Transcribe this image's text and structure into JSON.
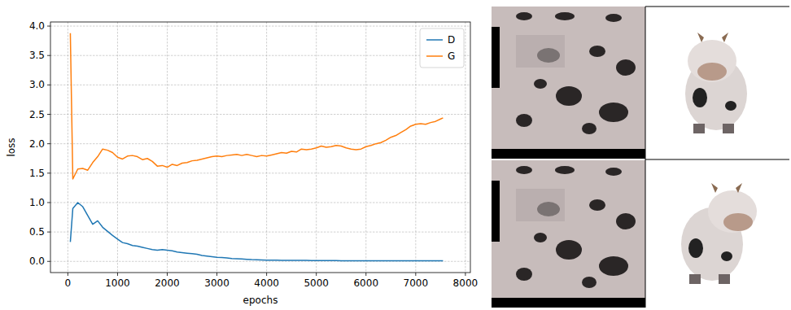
{
  "chart_data": {
    "type": "line",
    "xlabel": "epochs",
    "ylabel": "loss",
    "x": [
      50,
      100,
      200,
      300,
      400,
      500,
      600,
      700,
      800,
      900,
      1000,
      1100,
      1200,
      1300,
      1400,
      1500,
      1600,
      1700,
      1800,
      1900,
      2000,
      2100,
      2200,
      2300,
      2400,
      2500,
      2600,
      2700,
      2800,
      2900,
      3000,
      3100,
      3200,
      3300,
      3400,
      3500,
      3600,
      3700,
      3800,
      3900,
      4000,
      4100,
      4200,
      4300,
      4400,
      4500,
      4600,
      4700,
      4800,
      4900,
      5000,
      5100,
      5200,
      5300,
      5400,
      5500,
      5600,
      5700,
      5800,
      5900,
      6000,
      6100,
      6200,
      6300,
      6400,
      6500,
      6600,
      6700,
      6800,
      6900,
      7000,
      7100,
      7200,
      7300,
      7400,
      7500,
      7550
    ],
    "series": [
      {
        "name": "D",
        "color": "#1f77b4",
        "values": [
          0.33,
          0.9,
          1.0,
          0.93,
          0.78,
          0.63,
          0.69,
          0.58,
          0.51,
          0.44,
          0.38,
          0.32,
          0.3,
          0.27,
          0.26,
          0.24,
          0.22,
          0.2,
          0.19,
          0.2,
          0.19,
          0.18,
          0.16,
          0.15,
          0.14,
          0.13,
          0.12,
          0.1,
          0.09,
          0.08,
          0.07,
          0.065,
          0.06,
          0.05,
          0.045,
          0.04,
          0.035,
          0.03,
          0.028,
          0.025,
          0.022,
          0.02,
          0.02,
          0.019,
          0.018,
          0.018,
          0.017,
          0.016,
          0.016,
          0.015,
          0.015,
          0.014,
          0.014,
          0.013,
          0.013,
          0.012,
          0.012,
          0.012,
          0.011,
          0.011,
          0.011,
          0.01,
          0.01,
          0.01,
          0.01,
          0.01,
          0.01,
          0.01,
          0.01,
          0.01,
          0.01,
          0.01,
          0.01,
          0.01,
          0.01,
          0.01,
          0.01
        ]
      },
      {
        "name": "G",
        "color": "#ff7f0e",
        "values": [
          3.88,
          1.4,
          1.57,
          1.58,
          1.55,
          1.68,
          1.78,
          1.91,
          1.89,
          1.85,
          1.77,
          1.74,
          1.79,
          1.8,
          1.78,
          1.73,
          1.75,
          1.7,
          1.62,
          1.63,
          1.6,
          1.65,
          1.63,
          1.67,
          1.68,
          1.71,
          1.72,
          1.74,
          1.76,
          1.78,
          1.79,
          1.78,
          1.8,
          1.81,
          1.82,
          1.8,
          1.82,
          1.8,
          1.78,
          1.8,
          1.79,
          1.81,
          1.83,
          1.85,
          1.84,
          1.87,
          1.86,
          1.91,
          1.9,
          1.91,
          1.93,
          1.96,
          1.94,
          1.95,
          1.97,
          1.96,
          1.93,
          1.91,
          1.9,
          1.91,
          1.95,
          1.97,
          2.0,
          2.02,
          2.06,
          2.11,
          2.14,
          2.19,
          2.24,
          2.3,
          2.33,
          2.34,
          2.33,
          2.36,
          2.38,
          2.42,
          2.44
        ]
      }
    ],
    "xlim": [
      -350,
      8100
    ],
    "ylim": [
      -0.19,
      4.07
    ],
    "xticks": [
      0,
      1000,
      2000,
      3000,
      4000,
      5000,
      6000,
      7000,
      8000
    ],
    "yticks": [
      {
        "value": 0,
        "label": "0.0"
      },
      0.5,
      {
        "value": 1,
        "label": "1.0"
      },
      1.5,
      {
        "value": 2,
        "label": "2.0"
      },
      2.5,
      {
        "value": 3,
        "label": "3.0"
      },
      3.5,
      {
        "value": 4,
        "label": "4.0"
      }
    ],
    "grid": true,
    "legend": "upper right"
  }
}
